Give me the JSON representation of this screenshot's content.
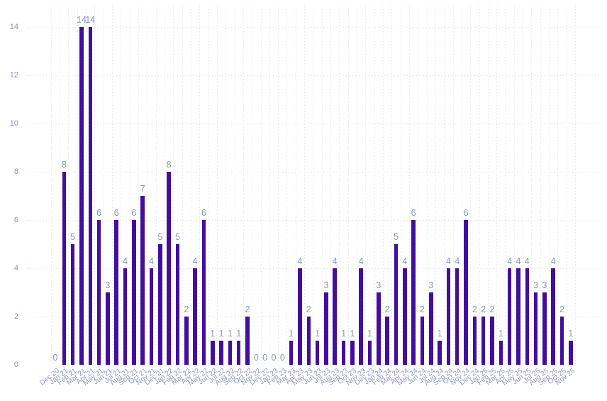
{
  "chart_data": {
    "type": "bar",
    "title": "",
    "xlabel": "",
    "ylabel": "",
    "ylim": [
      0,
      14
    ],
    "yticks": [
      0,
      2,
      4,
      6,
      8,
      10,
      12,
      14
    ],
    "grid": "dotted",
    "legend": "none",
    "value_labels_shown": true,
    "categories": [
      "Dec 20",
      "Jan 21",
      "Feb 21",
      "Mar 21",
      "Apr 21",
      "May 21",
      "Jun 21",
      "Jul 21",
      "Aug 21",
      "Sep 21",
      "Oct 21",
      "Nov 21",
      "Dec 21",
      "Jan 22",
      "Feb 22",
      "Mar 22",
      "Apr 22",
      "May 22",
      "Jun 22",
      "Jul 22",
      "Aug 22",
      "Sep 22",
      "Oct 22",
      "Nov 22",
      "Dec 22",
      "Jan 23",
      "Feb 23",
      "Mar 23",
      "Apr 23",
      "May 23",
      "Jun 23",
      "Jul 23",
      "Aug 23",
      "Sep 23",
      "Oct 23",
      "Nov 23",
      "Dec 23",
      "Jan 24",
      "Feb 24",
      "Mar 24",
      "Apr 24",
      "May 24",
      "Jun 24",
      "Jul 24",
      "Aug 24",
      "Sep 24",
      "Oct 24",
      "Nov 24",
      "Dec 24",
      "Jan 25",
      "Feb 25",
      "Mar 25",
      "Apr 25",
      "May 25",
      "Jun 25",
      "Jul 25",
      "Aug 25",
      "Sep 25",
      "Oct 25",
      "Nov 25"
    ],
    "values": [
      0,
      8,
      5,
      14,
      14,
      6,
      3,
      6,
      4,
      6,
      7,
      4,
      5,
      8,
      5,
      2,
      4,
      6,
      1,
      1,
      1,
      1,
      2,
      0,
      0,
      0,
      0,
      1,
      4,
      2,
      1,
      3,
      4,
      1,
      1,
      4,
      1,
      3,
      2,
      5,
      4,
      6,
      2,
      3,
      1,
      4,
      4,
      6,
      2,
      2,
      2,
      1,
      4,
      4,
      4,
      3,
      3,
      4,
      2,
      1
    ]
  },
  "style": {
    "bar_color": "#400f9e",
    "value_label_color": "#8b94bd",
    "y_tick_color": "#8b94bd",
    "x_tick_color": "#8f98c2",
    "grid_color": "#e3e3f3",
    "background_color": "#ffffff"
  }
}
